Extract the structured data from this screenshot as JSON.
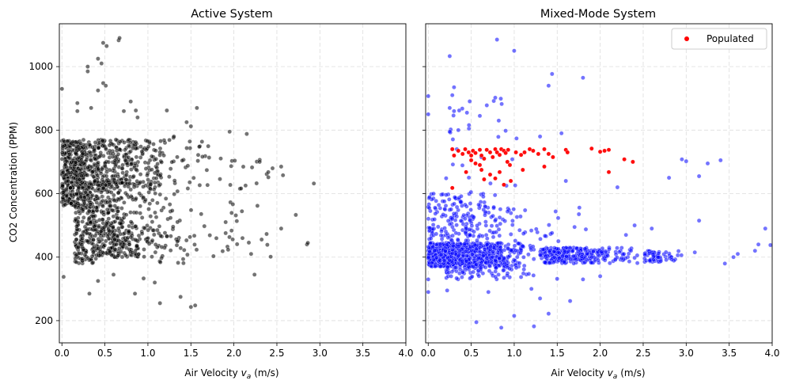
{
  "colors": {
    "active_points": "#000000",
    "mixed_points": "#0000ff",
    "populated_points": "#ff0000",
    "grid": "#dddddd"
  },
  "chart_data": [
    {
      "type": "scatter",
      "title": "Active System",
      "xlabel": "Air Velocity",
      "xlabel_symbol": "v",
      "xlabel_sub": "a",
      "xlabel_unit": "(m/s)",
      "ylabel": "CO2 Concentration (PPM)",
      "xlim": [
        -0.03,
        4.0
      ],
      "ylim": [
        130,
        1135
      ],
      "xticks": [
        "0.0",
        "0.5",
        "1.0",
        "1.5",
        "2.0",
        "2.5",
        "3.0",
        "3.5",
        "4.0"
      ],
      "yticks": [
        "200",
        "400",
        "600",
        "800",
        "1000"
      ],
      "grid": true,
      "series": [
        {
          "color": "#000000",
          "alpha": 0.55,
          "clusters": [
            {
              "n": 320,
              "x": [
                0.0,
                0.35
              ],
              "y": [
                560,
                770
              ]
            },
            {
              "n": 280,
              "x": [
                0.15,
                0.5
              ],
              "y": [
                380,
                760
              ]
            },
            {
              "n": 260,
              "x": [
                0.35,
                1.3
              ],
              "y": [
                620,
                770
              ]
            },
            {
              "n": 220,
              "x": [
                0.35,
                1.3
              ],
              "y": [
                400,
                500
              ]
            },
            {
              "n": 180,
              "x": [
                0.3,
                1.2
              ],
              "y": [
                500,
                640
              ]
            },
            {
              "n": 110,
              "x": [
                1.0,
                2.0
              ],
              "y": [
                380,
                780
              ]
            },
            {
              "n": 35,
              "x": [
                1.9,
                2.6
              ],
              "y": [
                400,
                720
              ]
            }
          ],
          "points": [
            {
              "x": 0.48,
              "y": 1075
            },
            {
              "x": 0.52,
              "y": 1065
            },
            {
              "x": 0.66,
              "y": 1083
            },
            {
              "x": 0.67,
              "y": 1090
            },
            {
              "x": 0.42,
              "y": 1025
            },
            {
              "x": 0.46,
              "y": 1010
            },
            {
              "x": 0.3,
              "y": 1000
            },
            {
              "x": 0.3,
              "y": 985
            },
            {
              "x": 0.48,
              "y": 948
            },
            {
              "x": 0.51,
              "y": 940
            },
            {
              "x": 0.42,
              "y": 925
            },
            {
              "x": 0.0,
              "y": 930
            },
            {
              "x": 0.8,
              "y": 890
            },
            {
              "x": 0.18,
              "y": 885
            },
            {
              "x": 0.34,
              "y": 870
            },
            {
              "x": 0.18,
              "y": 860
            },
            {
              "x": 0.72,
              "y": 860
            },
            {
              "x": 0.86,
              "y": 862
            },
            {
              "x": 0.88,
              "y": 840
            },
            {
              "x": 1.22,
              "y": 862
            },
            {
              "x": 1.57,
              "y": 870
            },
            {
              "x": 1.45,
              "y": 825
            },
            {
              "x": 1.5,
              "y": 812
            },
            {
              "x": 1.95,
              "y": 795
            },
            {
              "x": 2.15,
              "y": 788
            },
            {
              "x": 2.3,
              "y": 700
            },
            {
              "x": 2.4,
              "y": 668
            },
            {
              "x": 2.45,
              "y": 680
            },
            {
              "x": 2.55,
              "y": 685
            },
            {
              "x": 2.93,
              "y": 632
            },
            {
              "x": 2.72,
              "y": 533
            },
            {
              "x": 2.55,
              "y": 490
            },
            {
              "x": 2.85,
              "y": 440
            },
            {
              "x": 2.86,
              "y": 445
            },
            {
              "x": 2.1,
              "y": 460
            },
            {
              "x": 2.2,
              "y": 410
            },
            {
              "x": 2.24,
              "y": 345
            },
            {
              "x": 1.38,
              "y": 275
            },
            {
              "x": 1.55,
              "y": 248
            },
            {
              "x": 1.5,
              "y": 243
            },
            {
              "x": 1.14,
              "y": 255
            },
            {
              "x": 0.32,
              "y": 285
            },
            {
              "x": 0.42,
              "y": 325
            },
            {
              "x": 0.02,
              "y": 338
            },
            {
              "x": 0.85,
              "y": 285
            },
            {
              "x": 0.6,
              "y": 345
            },
            {
              "x": 0.95,
              "y": 333
            },
            {
              "x": 1.08,
              "y": 320
            }
          ]
        }
      ]
    },
    {
      "type": "scatter",
      "title": "Mixed-Mode System",
      "xlabel": "Air Velocity",
      "xlabel_symbol": "v",
      "xlabel_sub": "a",
      "xlabel_unit": "(m/s)",
      "xlim": [
        -0.03,
        4.0
      ],
      "ylim": [
        130,
        1135
      ],
      "xticks": [
        "0.0",
        "0.5",
        "1.0",
        "1.5",
        "2.0",
        "2.5",
        "3.0",
        "3.5",
        "4.0"
      ],
      "grid": true,
      "legend": {
        "position": "top-right",
        "entries": [
          "Populated"
        ]
      },
      "series": [
        {
          "color": "#0000ff",
          "alpha": 0.55,
          "clusters": [
            {
              "n": 900,
              "x": [
                0.0,
                1.3
              ],
              "y": [
                370,
                445
              ]
            },
            {
              "n": 300,
              "x": [
                1.3,
                2.5
              ],
              "y": [
                380,
                430
              ]
            },
            {
              "n": 60,
              "x": [
                2.5,
                3.0
              ],
              "y": [
                385,
                420
              ]
            },
            {
              "n": 160,
              "x": [
                0.0,
                1.0
              ],
              "y": [
                450,
                600
              ]
            },
            {
              "n": 60,
              "x": [
                0.4,
                2.0
              ],
              "y": [
                450,
                560
              ]
            },
            {
              "n": 70,
              "x": [
                0.2,
                1.6
              ],
              "y": [
                330,
                370
              ]
            },
            {
              "n": 25,
              "x": [
                0.2,
                1.3
              ],
              "y": [
                600,
                900
              ]
            }
          ],
          "points": [
            {
              "x": 0.8,
              "y": 1085
            },
            {
              "x": 1.0,
              "y": 1050
            },
            {
              "x": 0.25,
              "y": 1033
            },
            {
              "x": 1.44,
              "y": 977
            },
            {
              "x": 1.8,
              "y": 965
            },
            {
              "x": 1.4,
              "y": 940
            },
            {
              "x": 0.3,
              "y": 935
            },
            {
              "x": 0.28,
              "y": 910
            },
            {
              "x": 0.0,
              "y": 907
            },
            {
              "x": 0.78,
              "y": 902
            },
            {
              "x": 0.25,
              "y": 870
            },
            {
              "x": 0.3,
              "y": 860
            },
            {
              "x": 0.36,
              "y": 862
            },
            {
              "x": 0.45,
              "y": 855
            },
            {
              "x": 0.6,
              "y": 845
            },
            {
              "x": 0.82,
              "y": 830
            },
            {
              "x": 0.0,
              "y": 850
            },
            {
              "x": 0.25,
              "y": 795
            },
            {
              "x": 0.35,
              "y": 800
            },
            {
              "x": 0.9,
              "y": 798
            },
            {
              "x": 1.55,
              "y": 790
            },
            {
              "x": 1.3,
              "y": 780
            },
            {
              "x": 2.95,
              "y": 708
            },
            {
              "x": 3.0,
              "y": 702
            },
            {
              "x": 3.4,
              "y": 705
            },
            {
              "x": 3.25,
              "y": 695
            },
            {
              "x": 3.15,
              "y": 655
            },
            {
              "x": 3.15,
              "y": 515
            },
            {
              "x": 2.6,
              "y": 490
            },
            {
              "x": 3.98,
              "y": 438
            },
            {
              "x": 3.92,
              "y": 490
            },
            {
              "x": 3.8,
              "y": 420
            },
            {
              "x": 3.84,
              "y": 440
            },
            {
              "x": 3.55,
              "y": 400
            },
            {
              "x": 3.6,
              "y": 410
            },
            {
              "x": 3.45,
              "y": 380
            },
            {
              "x": 3.1,
              "y": 415
            },
            {
              "x": 2.4,
              "y": 500
            },
            {
              "x": 2.3,
              "y": 470
            },
            {
              "x": 2.8,
              "y": 650
            },
            {
              "x": 2.2,
              "y": 620
            },
            {
              "x": 1.6,
              "y": 640
            },
            {
              "x": 0.0,
              "y": 330
            },
            {
              "x": 0.0,
              "y": 290
            },
            {
              "x": 0.22,
              "y": 295
            },
            {
              "x": 0.56,
              "y": 195
            },
            {
              "x": 0.85,
              "y": 178
            },
            {
              "x": 1.23,
              "y": 182
            },
            {
              "x": 1.0,
              "y": 215
            },
            {
              "x": 1.4,
              "y": 222
            },
            {
              "x": 1.65,
              "y": 262
            },
            {
              "x": 1.3,
              "y": 270
            },
            {
              "x": 1.2,
              "y": 300
            },
            {
              "x": 0.7,
              "y": 290
            },
            {
              "x": 1.8,
              "y": 330
            },
            {
              "x": 2.0,
              "y": 340
            }
          ]
        },
        {
          "name": "Populated",
          "color": "#ff0000",
          "alpha": 0.95,
          "points": [
            {
              "x": 0.28,
              "y": 740
            },
            {
              "x": 0.3,
              "y": 720
            },
            {
              "x": 0.35,
              "y": 735
            },
            {
              "x": 0.4,
              "y": 725
            },
            {
              "x": 0.43,
              "y": 740
            },
            {
              "x": 0.47,
              "y": 730
            },
            {
              "x": 0.5,
              "y": 720
            },
            {
              "x": 0.52,
              "y": 735
            },
            {
              "x": 0.55,
              "y": 728
            },
            {
              "x": 0.6,
              "y": 738
            },
            {
              "x": 0.62,
              "y": 720
            },
            {
              "x": 0.65,
              "y": 710
            },
            {
              "x": 0.68,
              "y": 738
            },
            {
              "x": 0.72,
              "y": 730
            },
            {
              "x": 0.75,
              "y": 715
            },
            {
              "x": 0.78,
              "y": 740
            },
            {
              "x": 0.8,
              "y": 730
            },
            {
              "x": 0.83,
              "y": 722
            },
            {
              "x": 0.85,
              "y": 740
            },
            {
              "x": 0.88,
              "y": 735
            },
            {
              "x": 0.9,
              "y": 728
            },
            {
              "x": 0.93,
              "y": 738
            },
            {
              "x": 1.02,
              "y": 730
            },
            {
              "x": 1.08,
              "y": 722
            },
            {
              "x": 1.12,
              "y": 730
            },
            {
              "x": 1.18,
              "y": 740
            },
            {
              "x": 1.22,
              "y": 735
            },
            {
              "x": 1.28,
              "y": 725
            },
            {
              "x": 1.35,
              "y": 740
            },
            {
              "x": 1.4,
              "y": 725
            },
            {
              "x": 1.45,
              "y": 715
            },
            {
              "x": 1.6,
              "y": 738
            },
            {
              "x": 1.62,
              "y": 730
            },
            {
              "x": 1.9,
              "y": 742
            },
            {
              "x": 2.0,
              "y": 732
            },
            {
              "x": 2.05,
              "y": 735
            },
            {
              "x": 2.1,
              "y": 738
            },
            {
              "x": 2.28,
              "y": 708
            },
            {
              "x": 2.38,
              "y": 700
            },
            {
              "x": 2.1,
              "y": 668
            },
            {
              "x": 1.35,
              "y": 685
            },
            {
              "x": 1.1,
              "y": 675
            },
            {
              "x": 0.92,
              "y": 700
            },
            {
              "x": 0.95,
              "y": 690
            },
            {
              "x": 0.83,
              "y": 668
            },
            {
              "x": 0.78,
              "y": 648
            },
            {
              "x": 0.72,
              "y": 660
            },
            {
              "x": 0.62,
              "y": 675
            },
            {
              "x": 0.6,
              "y": 690
            },
            {
              "x": 0.55,
              "y": 695
            },
            {
              "x": 0.5,
              "y": 705
            },
            {
              "x": 0.44,
              "y": 668
            },
            {
              "x": 0.28,
              "y": 618
            },
            {
              "x": 0.88,
              "y": 628
            },
            {
              "x": 0.96,
              "y": 640
            },
            {
              "x": 0.65,
              "y": 645
            }
          ]
        }
      ]
    }
  ]
}
